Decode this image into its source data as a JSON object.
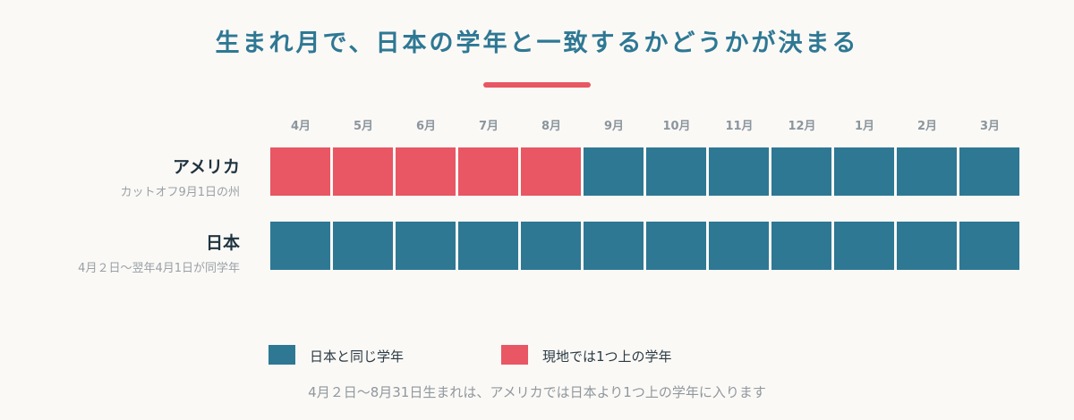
{
  "title": "生まれ月で、日本の学年と一致するかどうかが決まる",
  "colors": {
    "same_grade": "#2e7894",
    "one_grade_ahead": "#e85763",
    "accent_rule": "#e85763"
  },
  "months": [
    "4月",
    "5月",
    "6月",
    "7月",
    "8月",
    "9月",
    "10月",
    "11月",
    "12月",
    "1月",
    "2月",
    "3月"
  ],
  "rows": [
    {
      "name": "アメリカ",
      "note": "カットオフ9月1日の州",
      "cells": [
        "ahead",
        "ahead",
        "ahead",
        "ahead",
        "ahead",
        "same",
        "same",
        "same",
        "same",
        "same",
        "same",
        "same"
      ]
    },
    {
      "name": "日本",
      "note": "4月２日～翌年4月1日が同学年",
      "cells": [
        "same",
        "same",
        "same",
        "same",
        "same",
        "same",
        "same",
        "same",
        "same",
        "same",
        "same",
        "same"
      ]
    }
  ],
  "legend": {
    "same": "日本と同じ学年",
    "ahead": "現地では1つ上の学年"
  },
  "footnote": "4月２日～8月31日生まれは、アメリカでは日本より1つ上の学年に入ります"
}
